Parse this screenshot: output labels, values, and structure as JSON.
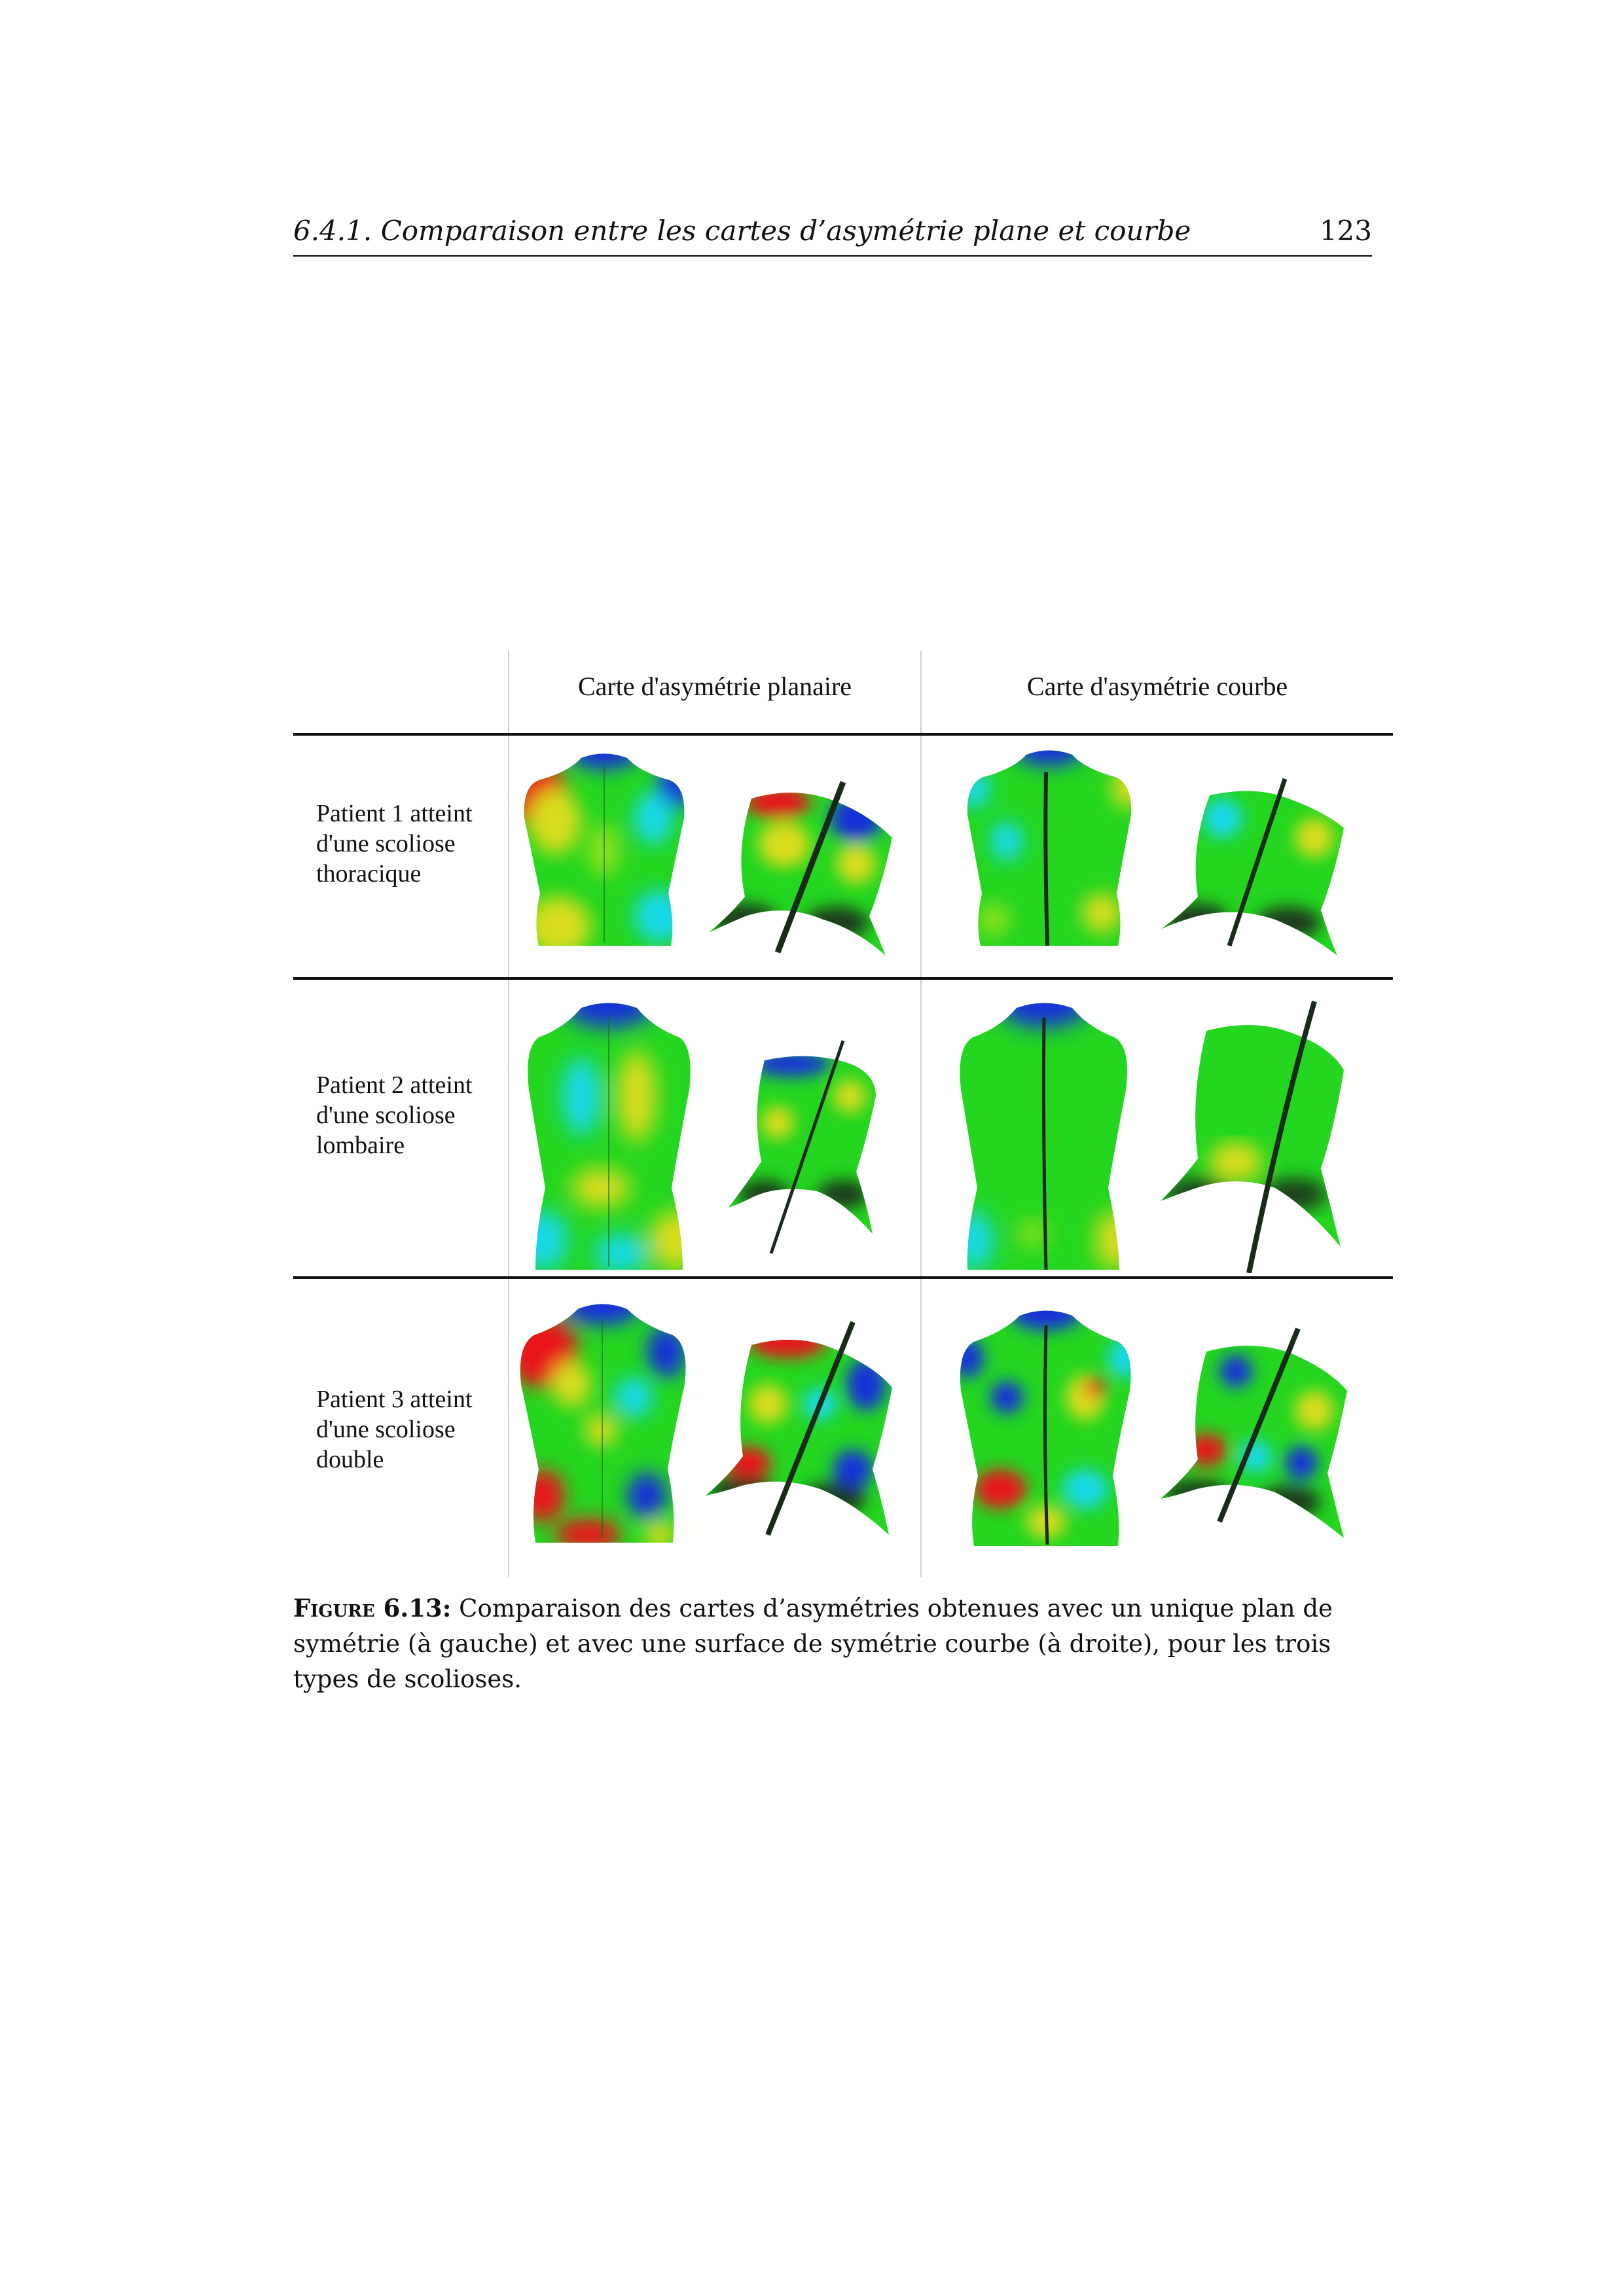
{
  "header": {
    "title": "6.4.1.  Comparaison entre les cartes d’asymétrie plane et courbe",
    "page_number": "123"
  },
  "figure": {
    "columns": [
      "Carte d'asymétrie planaire",
      "Carte d'asymétrie courbe"
    ],
    "rows": [
      {
        "label_lines": [
          "Patient 1 atteint",
          "d'une scoliose",
          "thoracique"
        ]
      },
      {
        "label_lines": [
          "Patient 2 atteint",
          "d'une scoliose",
          "lombaire"
        ]
      },
      {
        "label_lines": [
          "Patient 3 atteint",
          "d'une scoliose",
          "double"
        ]
      }
    ],
    "colors": {
      "red": "#e8141c",
      "yellow": "#d8dc1e",
      "green": "#22d620",
      "cyan": "#18d8e8",
      "blue": "#1432d8",
      "dark": "#1a2a1a"
    }
  },
  "caption": {
    "label": "Figure 6.13:",
    "text": " Comparaison des cartes d’asymétries obtenues avec un unique plan de symétrie (à gauche) et avec une surface de symétrie courbe (à droite), pour les trois types de scolioses."
  }
}
